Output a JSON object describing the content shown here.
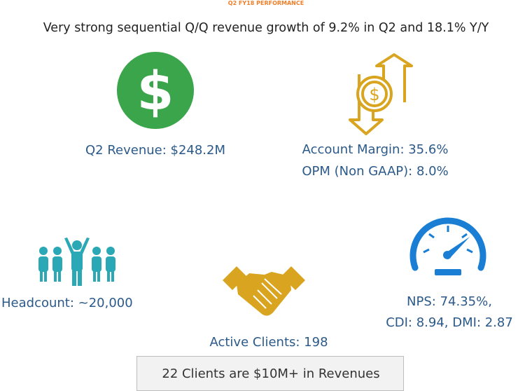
{
  "header": {
    "title": "Q2 FY18 PERFORMANCE",
    "subtitle": "Very strong sequential Q/Q revenue growth of 9.2% in Q2 and 18.1% Y/Y"
  },
  "metrics": {
    "revenue": {
      "lines": [
        "Q2 Revenue: $248.2M"
      ]
    },
    "margin": {
      "lines": [
        "Account Margin: 35.6%",
        "OPM (Non GAAP): 8.0%"
      ]
    },
    "headcount": {
      "lines": [
        "Headcount: ~20,000"
      ]
    },
    "clients": {
      "lines": [
        "Active Clients: 198"
      ]
    },
    "nps": {
      "lines": [
        "NPS: 74.35%,",
        "CDI: 8.94, DMI: 2.87"
      ]
    }
  },
  "callout": {
    "text": "22 Clients are $10M+ in Revenues"
  }
}
